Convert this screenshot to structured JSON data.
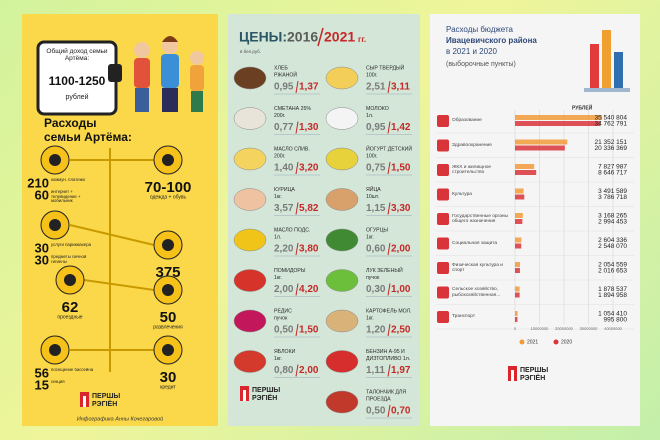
{
  "panel1": {
    "income_label": "Общий доход семьи Артёма:",
    "income": "1100-1250",
    "income_unit": "рублей",
    "title_lines": [
      "Расходы",
      "семьи Артёма:"
    ],
    "cells": [
      {
        "entries": [
          {
            "value": 210,
            "label": "коммун. платежи"
          },
          {
            "value": 60,
            "label": "интернет + телевидение + мобильник"
          }
        ]
      },
      {
        "entries": [
          {
            "value": "70-100",
            "label": "одежда + обувь"
          }
        ]
      },
      {
        "entries": [
          {
            "value": 30,
            "label": "услуги парикмахера"
          },
          {
            "value": 30,
            "label": "предметы личной гигиены"
          }
        ]
      },
      {
        "entries": [
          {
            "value": 375,
            "label": "продукты"
          }
        ]
      },
      {
        "entries": [
          {
            "value": 62,
            "label": "проездные"
          }
        ]
      },
      {
        "entries": [
          {
            "value": 50,
            "label": "развлечения"
          }
        ]
      },
      {
        "entries": [
          {
            "value": 56,
            "label": "посещение бассейна"
          },
          {
            "value": 15,
            "label": "секция"
          }
        ]
      },
      {
        "entries": [
          {
            "value": 30,
            "label": "кредит"
          }
        ]
      }
    ],
    "logo": {
      "line1": "ПЕРШЫ",
      "line2": "РЭГІЁН"
    },
    "credit": "Инфографика Анны Кочегаровой"
  },
  "panel2": {
    "title": "ЦЕНЫ:",
    "year_old": "2016",
    "year_new": "2021",
    "year_suffix": "гг.",
    "currency": "в бел.руб.",
    "left": [
      {
        "name": [
          "ХЛЕБ",
          "РЖАНОЙ"
        ],
        "old": "0,95",
        "new": "1,37",
        "icon_color": "#6b3f22"
      },
      {
        "name": [
          "СМЕТАНА 25%",
          "200г."
        ],
        "old": "0,77",
        "new": "1,30",
        "icon_color": "#e9e4da"
      },
      {
        "name": [
          "МАСЛО СЛИВ.",
          "200г."
        ],
        "old": "1,40",
        "new": "3,20",
        "icon_color": "#f4d35e"
      },
      {
        "name": [
          "КУРИЦА",
          "1кг."
        ],
        "old": "3,57",
        "new": "5,82",
        "icon_color": "#efc3a2"
      },
      {
        "name": [
          "МАСЛО ПОДС.",
          "1л."
        ],
        "old": "2,20",
        "new": "3,80",
        "icon_color": "#f0c419"
      },
      {
        "name": [
          "ПОМИДОРЫ",
          "1кг."
        ],
        "old": "2,00",
        "new": "4,20",
        "icon_color": "#d6342a"
      },
      {
        "name": [
          "РЕДИС",
          "пучок"
        ],
        "old": "0,50",
        "new": "1,50",
        "icon_color": "#c2185b"
      },
      {
        "name": [
          "ЯБЛОКИ",
          "1кг."
        ],
        "old": "0,80",
        "new": "2,00",
        "icon_color": "#d33a2c"
      }
    ],
    "right": [
      {
        "name": [
          "СЫР ТВЕРДЫЙ",
          "100г."
        ],
        "old": "2,51",
        "new": "3,11",
        "icon_color": "#f3cf5a"
      },
      {
        "name": [
          "МОЛОКО",
          "1л."
        ],
        "old": "0,95",
        "new": "1,42",
        "icon_color": "#f4f4f4"
      },
      {
        "name": [
          "ЙОГУРТ ДЕТСКИЙ",
          "100г."
        ],
        "old": "0,75",
        "new": "1,50",
        "icon_color": "#e7d23b"
      },
      {
        "name": [
          "ЯЙЦА",
          "10шт."
        ],
        "old": "1,15",
        "new": "3,30",
        "icon_color": "#d8a06a"
      },
      {
        "name": [
          "ОГУРЦЫ",
          "1кг."
        ],
        "old": "0,60",
        "new": "2,00",
        "icon_color": "#3f8a32"
      },
      {
        "name": [
          "ЛУК ЗЕЛЕНЫЙ",
          "пучок"
        ],
        "old": "0,30",
        "new": "1,00",
        "icon_color": "#6cbf3b"
      },
      {
        "name": [
          "КАРТОФЕЛЬ МОЛ.",
          "1кг."
        ],
        "old": "1,20",
        "new": "2,50",
        "icon_color": "#d9b27a"
      },
      {
        "name": [
          "БЕНЗИН А-95 И",
          "ДИЗТОПЛИВО 1л."
        ],
        "old": "1,11",
        "new": "1,97",
        "icon_color": "#d62d2d"
      },
      {
        "name": [
          "ТАЛОНЧИК ДЛЯ",
          "ПРОЕЗДА"
        ],
        "old": "0,50",
        "new": "0,70",
        "icon_color": "#c0392b"
      }
    ],
    "logo": {
      "line1": "ПЕРШЫ",
      "line2": "РЭГІЁН"
    }
  },
  "chart_data": {
    "type": "bar",
    "orientation": "horizontal",
    "title": [
      "Расходы бюджета",
      "Ивацевичского района",
      "в 2021 и 2020"
    ],
    "subtitle": "(выборочные пункты)",
    "unit_label": "РУБЛЕЙ",
    "categories": [
      "Образование",
      "Здравоохранение",
      "ЖКХ и жилищное строительство",
      "Культура",
      "Государственные органы общего назначения",
      "Социальная защита",
      "Физическая культура и спорт",
      "Сельское хозяйство, рыбохозяйственная...",
      "Транспорт"
    ],
    "series": [
      {
        "name": "2021",
        "color": "#f29a38",
        "values": [
          35540804,
          21352151,
          7827987,
          3491589,
          3168265,
          2604336,
          2054559,
          1878537,
          1054410
        ],
        "value_labels": [
          "35 540 804",
          "21 352 151",
          "7 827 987",
          "3 491 589",
          "3 168 265",
          "2 604 336",
          "2 054 559",
          "1 878 537",
          "1 054 410"
        ]
      },
      {
        "name": "2020",
        "color": "#d9343a",
        "values": [
          34762791,
          20336369,
          8646717,
          3786718,
          2994453,
          2548070,
          2016653,
          1894958,
          995800
        ],
        "value_labels": [
          "34 762 791",
          "20 336 369",
          "8 646 717",
          "3 786 718",
          "2 994 453",
          "2 548 070",
          "2 016 653",
          "1 894 958",
          "995 800"
        ]
      }
    ],
    "xlim": [
      0,
      40000000
    ],
    "xticks": [
      0,
      10000000,
      20000000,
      30000000,
      40000000
    ],
    "grid": true,
    "legend": "bottom",
    "logo": {
      "line1": "ПЕРШЫ",
      "line2": "РЭГІЁН"
    }
  }
}
